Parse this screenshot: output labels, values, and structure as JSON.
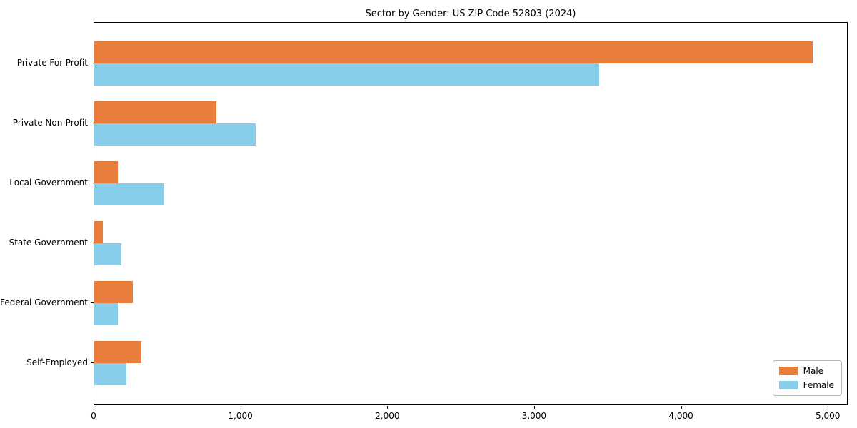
{
  "chart": {
    "title": "Sector by Gender: US ZIP Code 52803 (2024)"
  },
  "chart_data": {
    "type": "bar",
    "orientation": "horizontal",
    "title": "Sector by Gender: US ZIP Code 52803 (2024)",
    "categories": [
      "Private For-Profit",
      "Private Non-Profit",
      "Local Government",
      "State Government",
      "Federal Government",
      "Self-Employed"
    ],
    "series": [
      {
        "name": "Male",
        "color": "#E87D3C",
        "values": [
          4890,
          830,
          160,
          60,
          260,
          320
        ]
      },
      {
        "name": "Female",
        "color": "#87CEEB",
        "values": [
          3440,
          1100,
          475,
          185,
          160,
          220
        ]
      }
    ],
    "xlabel": "",
    "ylabel": "",
    "xlim": [
      0,
      5135
    ],
    "x_ticks": [
      0,
      1000,
      2000,
      3000,
      4000,
      5000
    ],
    "x_tick_labels": [
      "0",
      "1,000",
      "2,000",
      "3,000",
      "4,000",
      "5,000"
    ],
    "grid": false,
    "legend_position": "lower right"
  },
  "legend": {
    "male": "Male",
    "female": "Female"
  }
}
